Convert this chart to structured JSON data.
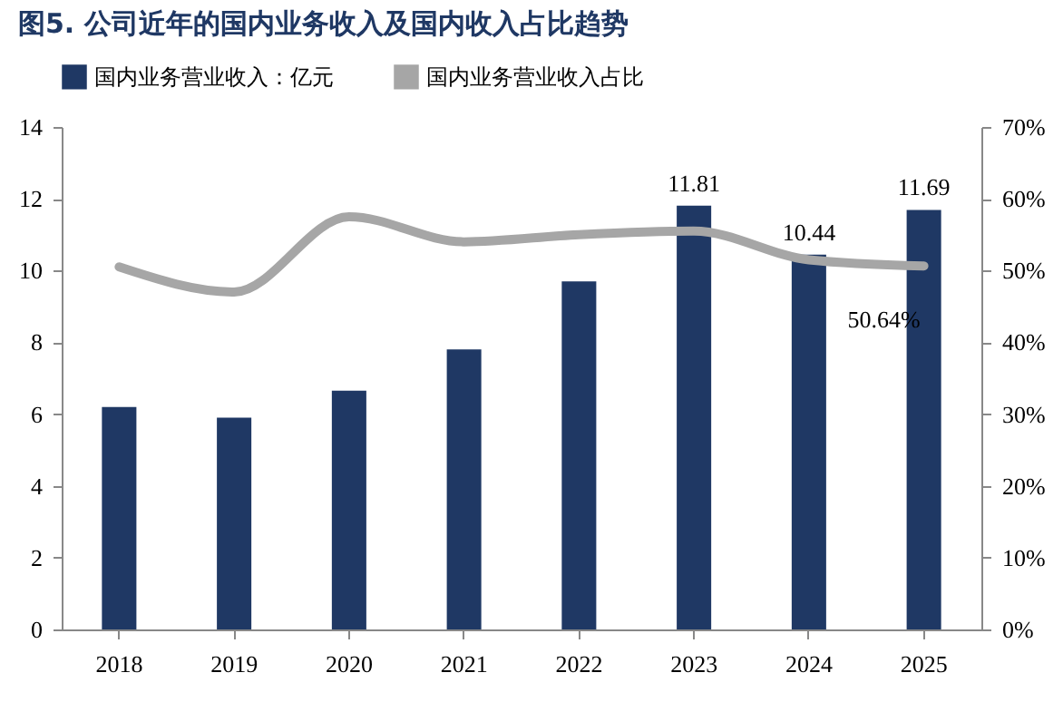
{
  "chart_data": {
    "type": "bar",
    "title": "图5. 公司近年的国内业务收入及国内收入占比趋势",
    "categories": [
      "2018",
      "2019",
      "2020",
      "2021",
      "2022",
      "2023",
      "2024",
      "2025"
    ],
    "series": [
      {
        "name": "国内业务营业收入：亿元",
        "color": "#1f3864",
        "values": [
          6.2,
          5.9,
          6.65,
          7.8,
          9.7,
          11.81,
          10.44,
          11.69
        ],
        "value_labels": [
          null,
          null,
          null,
          null,
          null,
          "11.81",
          "10.44",
          "11.69"
        ]
      },
      {
        "name": "国内业务营业收入占比",
        "type": "line",
        "axis": "y2",
        "color": "#a6a6a6",
        "values": [
          50.5,
          47,
          57.5,
          54,
          55,
          55.5,
          51.5,
          50.64
        ],
        "value_labels": [
          null,
          null,
          null,
          null,
          null,
          null,
          null,
          "50.64%"
        ]
      }
    ],
    "ylim": [
      0,
      14
    ],
    "yticks": [
      0,
      2,
      4,
      6,
      8,
      10,
      12,
      14
    ],
    "y2lim": [
      0,
      70
    ],
    "y2ticks": [
      {
        "value": 0,
        "label": "0%"
      },
      {
        "value": 10,
        "label": "10%"
      },
      {
        "value": 20,
        "label": "20%"
      },
      {
        "value": 30,
        "label": "30%"
      },
      {
        "value": 40,
        "label": "40%"
      },
      {
        "value": 50,
        "label": "50%"
      },
      {
        "value": 60,
        "label": "60%"
      },
      {
        "value": 70,
        "label": "70%"
      }
    ],
    "legend": "top",
    "grid": false
  }
}
